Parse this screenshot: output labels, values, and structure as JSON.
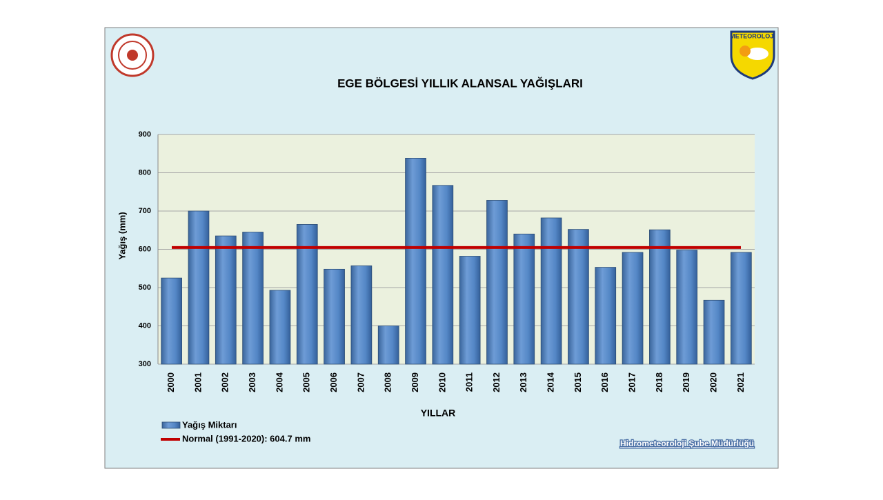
{
  "chart_data": {
    "type": "bar",
    "title": "EGE BÖLGESİ  YILLIK ALANSAL YAĞIŞLARI",
    "x_label": "YILLAR",
    "y_label": "Yağış (mm)",
    "categories": [
      "2000",
      "2001",
      "2002",
      "2003",
      "2004",
      "2005",
      "2006",
      "2007",
      "2008",
      "2009",
      "2010",
      "2011",
      "2012",
      "2013",
      "2014",
      "2015",
      "2016",
      "2017",
      "2018",
      "2019",
      "2020",
      "2021"
    ],
    "series": [
      {
        "name": "Yağış Miktarı",
        "color": "#4f81bd",
        "values": [
          525,
          700,
          635,
          645,
          493,
          665,
          548,
          557,
          400,
          838,
          767,
          582,
          728,
          640,
          682,
          652,
          553,
          592,
          651,
          598,
          467,
          592
        ]
      }
    ],
    "normal": {
      "name": "Normal (1991-2020): 604.7 mm",
      "value": 604.7,
      "color": "#c00000"
    },
    "ylim": [
      300,
      900
    ],
    "yticks": [
      300,
      400,
      500,
      600,
      700,
      800,
      900
    ],
    "grid": true,
    "footer": "Hidrometeoroloji Şube Müdürlüğü",
    "logo_text": "METEOROLOJİ"
  }
}
